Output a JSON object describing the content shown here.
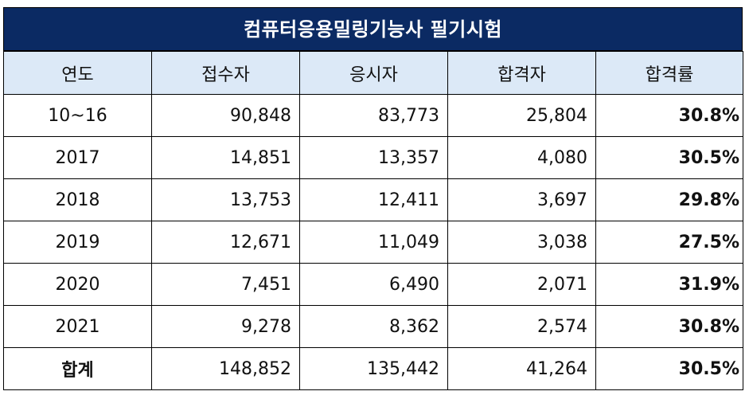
{
  "title": "컴퓨터응용밀링기능사 필기시험",
  "headers": [
    "연도",
    "접수자",
    "응시자",
    "합격자",
    "합격률"
  ],
  "rows": [
    {
      "year": "10~16",
      "applicants": "90,848",
      "examinees": "83,773",
      "passers": "25,804",
      "rate": "30.8%"
    },
    {
      "year": "2017",
      "applicants": "14,851",
      "examinees": "13,357",
      "passers": "4,080",
      "rate": "30.5%"
    },
    {
      "year": "2018",
      "applicants": "13,753",
      "examinees": "12,411",
      "passers": "3,697",
      "rate": "29.8%"
    },
    {
      "year": "2019",
      "applicants": "12,671",
      "examinees": "11,049",
      "passers": "3,038",
      "rate": "27.5%"
    },
    {
      "year": "2020",
      "applicants": "7,451",
      "examinees": "6,490",
      "passers": "2,071",
      "rate": "31.9%"
    },
    {
      "year": "2021",
      "applicants": "9,278",
      "examinees": "8,362",
      "passers": "2,574",
      "rate": "30.8%"
    }
  ],
  "total": {
    "year": "합계",
    "applicants": "148,852",
    "examinees": "135,442",
    "passers": "41,264",
    "rate": "30.5%"
  },
  "colors": {
    "title_bg": "#0b2a63",
    "header_bg": "#dce9f7"
  }
}
